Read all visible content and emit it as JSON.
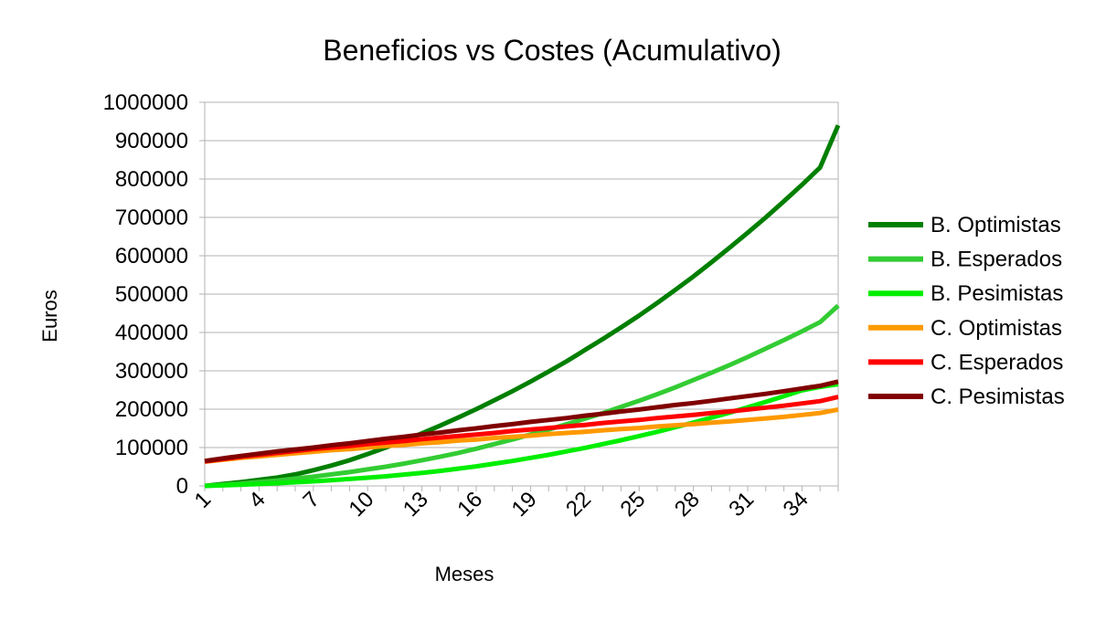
{
  "chart_data": {
    "type": "line",
    "title": "Beneficios vs Costes (Acumulativo)",
    "xlabel": "Meses",
    "ylabel": "Euros",
    "x": [
      1,
      2,
      3,
      4,
      5,
      6,
      7,
      8,
      9,
      10,
      11,
      12,
      13,
      14,
      15,
      16,
      17,
      18,
      19,
      20,
      21,
      22,
      23,
      24,
      25,
      26,
      27,
      28,
      29,
      30,
      31,
      32,
      33,
      34,
      35,
      36
    ],
    "x_tick_labels": [
      "1",
      "4",
      "7",
      "10",
      "13",
      "16",
      "19",
      "22",
      "25",
      "28",
      "31",
      "34"
    ],
    "y_tick_labels": [
      "0",
      "100000",
      "200000",
      "300000",
      "400000",
      "500000",
      "600000",
      "700000",
      "800000",
      "900000",
      "1000000"
    ],
    "ylim": [
      0,
      1000000
    ],
    "grid": true,
    "legend_position": "right",
    "series": [
      {
        "name": "B. Optimistas",
        "color": "#007f00",
        "values": [
          0,
          5000,
          10000,
          16000,
          22000,
          30000,
          41000,
          53000,
          67000,
          83000,
          100000,
          118000,
          137000,
          157000,
          178000,
          200000,
          223000,
          247000,
          272000,
          298000,
          325000,
          354000,
          383000,
          413000,
          444000,
          477000,
          511000,
          546000,
          583000,
          621000,
          660000,
          700000,
          742000,
          785000,
          830000,
          940000
        ]
      },
      {
        "name": "B. Esperados",
        "color": "#33cc33",
        "values": [
          0,
          3000,
          6000,
          10000,
          14000,
          19000,
          24000,
          30000,
          36000,
          43000,
          50000,
          58000,
          67000,
          76000,
          86000,
          97000,
          109000,
          121000,
          134000,
          147000,
          161000,
          175000,
          190000,
          206000,
          222000,
          239000,
          257000,
          276000,
          295000,
          315000,
          336000,
          358000,
          380000,
          403000,
          427000,
          470000
        ]
      },
      {
        "name": "B. Pesimistas",
        "color": "#00ee00",
        "values": [
          0,
          1500,
          3000,
          5000,
          7000,
          9500,
          12000,
          15000,
          18000,
          21500,
          25000,
          29500,
          34000,
          39000,
          45000,
          51000,
          58000,
          65000,
          73000,
          81000,
          90000,
          99000,
          109000,
          119000,
          130000,
          141000,
          153000,
          165000,
          178000,
          191000,
          205000,
          219000,
          234000,
          249000,
          258000,
          265000
        ]
      },
      {
        "name": "C. Optimistas",
        "color": "#ff9900",
        "values": [
          63000,
          68000,
          73000,
          77000,
          81000,
          85000,
          89000,
          93000,
          96000,
          100000,
          104000,
          107000,
          111000,
          114000,
          118000,
          121000,
          125000,
          128000,
          131000,
          135000,
          138000,
          141000,
          145000,
          148000,
          151000,
          155000,
          158000,
          161000,
          165000,
          168000,
          172000,
          176000,
          180000,
          185000,
          190000,
          199000
        ]
      },
      {
        "name": "C. Esperados",
        "color": "#ff0000",
        "values": [
          64000,
          70000,
          76000,
          81000,
          86000,
          91000,
          96000,
          100000,
          104000,
          109000,
          113000,
          117000,
          122000,
          126000,
          130000,
          134000,
          138000,
          143000,
          147000,
          151000,
          155000,
          159000,
          164000,
          168000,
          172000,
          177000,
          181000,
          185000,
          190000,
          194000,
          199000,
          204000,
          209000,
          215000,
          221000,
          232000
        ]
      },
      {
        "name": "C. Pesimistas",
        "color": "#800000",
        "values": [
          65000,
          72000,
          78000,
          84000,
          90000,
          95000,
          100000,
          106000,
          111000,
          117000,
          123000,
          128000,
          134000,
          139000,
          145000,
          150000,
          156000,
          161000,
          167000,
          172000,
          177000,
          183000,
          188000,
          194000,
          199000,
          205000,
          211000,
          216000,
          222000,
          228000,
          234000,
          240000,
          247000,
          254000,
          261000,
          272000
        ]
      }
    ]
  }
}
